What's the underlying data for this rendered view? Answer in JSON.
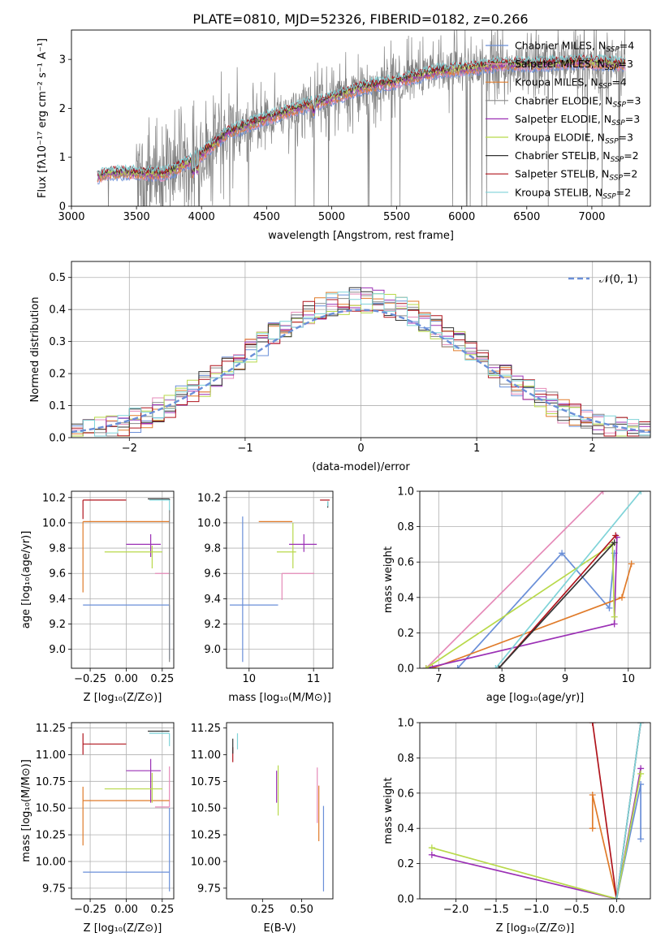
{
  "title": "PLATE=0810, MJD=52326, FIBERID=0182, z=0.266",
  "colors": {
    "chabrier_miles": "#6a8fd8",
    "salpeter_miles": "#e58ab8",
    "kroupa_miles": "#e07b2a",
    "chabrier_elodie": "#8a8a8a",
    "salpeter_elodie": "#9b30b5",
    "kroupa_elodie": "#b8d94a",
    "chabrier_stelib": "#333333",
    "salpeter_stelib": "#b0141c",
    "kroupa_stelib": "#7fd3d8",
    "grid": "#b0b0b0"
  },
  "legend_spectrum": [
    {
      "text": "Chabrier MILES, N",
      "sub": "SSP",
      "tail": "=4",
      "color": "#6a8fd8"
    },
    {
      "text": "Salpeter MILES, N",
      "sub": "SSP",
      "tail": "=3",
      "color": "#e58ab8"
    },
    {
      "text": "Kroupa MILES, N",
      "sub": "SSP",
      "tail": "=4",
      "color": "#e07b2a"
    },
    {
      "text": "Chabrier ELODIE, N",
      "sub": "SSP",
      "tail": "=3",
      "color": "#8a8a8a"
    },
    {
      "text": "Salpeter ELODIE, N",
      "sub": "SSP",
      "tail": "=3",
      "color": "#9b30b5"
    },
    {
      "text": "Kroupa ELODIE, N",
      "sub": "SSP",
      "tail": "=3",
      "color": "#b8d94a"
    },
    {
      "text": "Chabrier STELIB, N",
      "sub": "SSP",
      "tail": "=2",
      "color": "#333333"
    },
    {
      "text": "Salpeter STELIB, N",
      "sub": "SSP",
      "tail": "=2",
      "color": "#b0141c"
    },
    {
      "text": "Kroupa STELIB, N",
      "sub": "SSP",
      "tail": "=2",
      "color": "#7fd3d8"
    }
  ],
  "legend_hist": {
    "label": "𝒩(0, 1)",
    "color": "#6a8fd8"
  },
  "chart_data": [
    {
      "id": "spectrum",
      "type": "line",
      "xlabel": "wavelength [Angstrom, rest frame]",
      "ylabel": "Flux [fλ10⁻¹⁷ erg cm⁻² s⁻¹ A⁻¹]",
      "xlim": [
        3000,
        7450
      ],
      "ylim": [
        0,
        3.6
      ],
      "xticks": [
        3000,
        3500,
        4000,
        4500,
        5000,
        5500,
        6000,
        6500,
        7000
      ],
      "yticks": [
        0,
        1,
        2,
        3
      ],
      "legend_position": "top-right",
      "grid": false,
      "data_range": [
        3200,
        7260
      ],
      "model_trend": [
        [
          3200,
          0.6
        ],
        [
          3300,
          0.68
        ],
        [
          3500,
          0.68
        ],
        [
          3700,
          0.65
        ],
        [
          3800,
          0.75
        ],
        [
          4000,
          1.05
        ],
        [
          4200,
          1.5
        ],
        [
          4500,
          1.8
        ],
        [
          4800,
          2.05
        ],
        [
          5000,
          2.2
        ],
        [
          5200,
          2.4
        ],
        [
          5500,
          2.55
        ],
        [
          5800,
          2.75
        ],
        [
          6000,
          2.8
        ],
        [
          6300,
          2.9
        ],
        [
          6600,
          2.9
        ],
        [
          6900,
          2.95
        ],
        [
          7260,
          2.9
        ]
      ]
    },
    {
      "id": "residuals",
      "type": "histogram",
      "xlabel": "(data-model)/error",
      "ylabel": "Normed distribution",
      "xlim": [
        -2.5,
        2.5
      ],
      "ylim": [
        0,
        0.55
      ],
      "xticks": [
        -2,
        -1,
        0,
        1,
        2
      ],
      "yticks": [
        0.0,
        0.1,
        0.2,
        0.3,
        0.4,
        0.5
      ],
      "legend_position": "top-right",
      "grid": true,
      "bin_width": 0.1,
      "reference_curve": "normal(0,1)"
    },
    {
      "id": "age_vs_Z",
      "type": "errorbar",
      "xlabel": "Z [log₁₀(Z/Z⊙)]",
      "ylabel": "age  [log₁₀(age/yr)]",
      "xlim": [
        -0.38,
        0.33
      ],
      "ylim": [
        8.85,
        10.25
      ],
      "xticks": [
        -0.25,
        0.0,
        0.25
      ],
      "yticks": [
        9.0,
        9.2,
        9.4,
        9.6,
        9.8,
        10.0,
        10.2
      ],
      "grid": true,
      "series": [
        {
          "color": "#6a8fd8",
          "x": 0.3,
          "xerr": [
            0.6,
            0.0
          ],
          "y": 9.35,
          "yerr": [
            0.43,
            0.0
          ]
        },
        {
          "color": "#e58ab8",
          "x": 0.3,
          "xerr": [
            0.1,
            0.0
          ],
          "y": 9.6,
          "yerr": [
            0.0,
            0.0
          ]
        },
        {
          "color": "#e07b2a",
          "x": -0.3,
          "xerr": [
            0.0,
            0.6
          ],
          "y": 10.01,
          "yerr": [
            0.56,
            0.0
          ]
        },
        {
          "color": "#9b30b5",
          "x": 0.17,
          "xerr": [
            0.17,
            0.07
          ],
          "y": 9.83,
          "yerr": [
            0.1,
            0.08
          ]
        },
        {
          "color": "#b8d94a",
          "x": 0.18,
          "xerr": [
            0.33,
            0.07
          ],
          "y": 9.77,
          "yerr": [
            0.13,
            0.05
          ]
        },
        {
          "color": "#b0141c",
          "x": -0.3,
          "xerr": [
            0.0,
            0.3
          ],
          "y": 10.18,
          "yerr": [
            0.15,
            0.0
          ]
        },
        {
          "color": "#333333",
          "x": 0.3,
          "xerr": [
            0.15,
            0.0
          ],
          "y": 10.19,
          "yerr": [
            0.01,
            0.0
          ]
        },
        {
          "color": "#7fd3d8",
          "x": 0.3,
          "xerr": [
            0.14,
            0.0
          ],
          "y": 10.18,
          "yerr": [
            0.1,
            0.0
          ]
        },
        {
          "color": "#8a8a8a",
          "x": 0.3,
          "xerr": [
            0.0,
            0.0
          ],
          "y": 10.1,
          "yerr": [
            1.2,
            0.0
          ]
        }
      ]
    },
    {
      "id": "age_vs_mass",
      "type": "errorbar",
      "xlabel": "mass [log₁₀(M/M⊙)]",
      "ylabel": "",
      "xlim": [
        9.65,
        11.3
      ],
      "ylim": [
        8.85,
        10.25
      ],
      "xticks": [
        10,
        11
      ],
      "yticks": [
        9.0,
        9.2,
        9.4,
        9.6,
        9.8,
        10.0,
        10.2
      ],
      "grid": true,
      "series": [
        {
          "color": "#6a8fd8",
          "x": 9.9,
          "xerr": [
            0.2,
            0.55
          ],
          "y": 9.35,
          "yerr": [
            0.45,
            0.7
          ]
        },
        {
          "color": "#e58ab8",
          "x": 10.51,
          "xerr": [
            0.0,
            0.5
          ],
          "y": 9.6,
          "yerr": [
            0.21,
            0.0
          ]
        },
        {
          "color": "#e07b2a",
          "x": 10.57,
          "xerr": [
            0.42,
            0.1
          ],
          "y": 10.01,
          "yerr": [
            0.0,
            0.0
          ]
        },
        {
          "color": "#b8d94a",
          "x": 10.68,
          "xerr": [
            0.25,
            0.05
          ],
          "y": 9.77,
          "yerr": [
            0.13,
            0.23
          ]
        },
        {
          "color": "#9b30b5",
          "x": 10.85,
          "xerr": [
            0.23,
            0.2
          ],
          "y": 9.83,
          "yerr": [
            0.06,
            0.08
          ]
        },
        {
          "color": "#b0141c",
          "x": 11.1,
          "xerr": [
            0.0,
            0.15
          ],
          "y": 10.18,
          "yerr": [
            0.0,
            0.0
          ]
        },
        {
          "color": "#333333",
          "x": 11.22,
          "xerr": [
            0.0,
            0.0
          ],
          "y": 10.17,
          "yerr": [
            0.05,
            0.0
          ]
        },
        {
          "color": "#7fd3d8",
          "x": 11.22,
          "xerr": [
            0.0,
            0.0
          ],
          "y": 10.17,
          "yerr": [
            0.04,
            0.0
          ]
        }
      ]
    },
    {
      "id": "weight_vs_age",
      "type": "line",
      "xlabel": "age  [log₁₀(age/yr)]",
      "ylabel": "mass weight",
      "xlim": [
        6.7,
        10.35
      ],
      "ylim": [
        0,
        1.0
      ],
      "xticks": [
        7,
        8,
        9,
        10
      ],
      "yticks": [
        0.0,
        0.2,
        0.4,
        0.6,
        0.8,
        1.0
      ],
      "grid": true,
      "series": [
        {
          "color": "#6a8fd8",
          "x": [
            7.3,
            8.95,
            9.7,
            9.78
          ],
          "y": [
            0.0,
            0.65,
            0.34,
            0.65
          ]
        },
        {
          "color": "#e58ab8",
          "x": [
            6.8,
            9.6
          ],
          "y": [
            0.0,
            1.0
          ]
        },
        {
          "color": "#e07b2a",
          "x": [
            6.9,
            9.9,
            10.05
          ],
          "y": [
            0.0,
            0.4,
            0.59
          ]
        },
        {
          "color": "#9b30b5",
          "x": [
            6.8,
            9.78,
            9.82
          ],
          "y": [
            0.0,
            0.25,
            0.74
          ]
        },
        {
          "color": "#b8d94a",
          "x": [
            6.8,
            9.75,
            9.78
          ],
          "y": [
            0.0,
            0.7,
            0.29
          ]
        },
        {
          "color": "#b0141c",
          "x": [
            7.95,
            9.8
          ],
          "y": [
            0.0,
            0.75
          ]
        },
        {
          "color": "#333333",
          "x": [
            7.95,
            9.78
          ],
          "y": [
            0.0,
            0.71
          ]
        },
        {
          "color": "#7fd3d8",
          "x": [
            7.9,
            10.2
          ],
          "y": [
            0.0,
            1.0
          ]
        }
      ]
    },
    {
      "id": "mass_vs_Z",
      "type": "errorbar",
      "xlabel": "Z [log₁₀(Z/Z⊙)]",
      "ylabel": "mass [log₁₀(M/M⊙)]",
      "xlim": [
        -0.38,
        0.33
      ],
      "ylim": [
        9.65,
        11.3
      ],
      "xticks": [
        -0.25,
        0.0,
        0.25
      ],
      "yticks": [
        9.75,
        10.0,
        10.25,
        10.5,
        10.75,
        11.0,
        11.25
      ],
      "grid": true,
      "series": [
        {
          "color": "#6a8fd8",
          "x": 0.3,
          "xerr": [
            0.6,
            0.0
          ],
          "y": 9.9,
          "yerr": [
            0.18,
            0.6
          ]
        },
        {
          "color": "#e58ab8",
          "x": 0.3,
          "xerr": [
            0.1,
            0.0
          ],
          "y": 10.51,
          "yerr": [
            0.0,
            0.38
          ]
        },
        {
          "color": "#e07b2a",
          "x": -0.3,
          "xerr": [
            0.0,
            0.6
          ],
          "y": 10.57,
          "yerr": [
            0.42,
            0.13
          ]
        },
        {
          "color": "#9b30b5",
          "x": 0.17,
          "xerr": [
            0.17,
            0.07
          ],
          "y": 10.85,
          "yerr": [
            0.3,
            0.11
          ]
        },
        {
          "color": "#b8d94a",
          "x": 0.18,
          "xerr": [
            0.33,
            0.07
          ],
          "y": 10.68,
          "yerr": [
            0.13,
            0.15
          ]
        },
        {
          "color": "#b0141c",
          "x": -0.3,
          "xerr": [
            0.0,
            0.3
          ],
          "y": 11.1,
          "yerr": [
            0.1,
            0.1
          ]
        },
        {
          "color": "#333333",
          "x": 0.3,
          "xerr": [
            0.15,
            0.0
          ],
          "y": 11.22,
          "yerr": [
            0.0,
            0.0
          ]
        },
        {
          "color": "#7fd3d8",
          "x": 0.3,
          "xerr": [
            0.14,
            0.0
          ],
          "y": 11.2,
          "yerr": [
            0.12,
            0.0
          ]
        }
      ]
    },
    {
      "id": "mass_vs_ebv",
      "type": "errorbar",
      "xlabel": "E(B-V)",
      "ylabel": "",
      "xlim": [
        0.02,
        0.7
      ],
      "ylim": [
        9.65,
        11.3
      ],
      "xticks": [
        0.25,
        0.5
      ],
      "yticks": [
        9.75,
        10.0,
        10.25,
        10.5,
        10.75,
        11.0,
        11.25
      ],
      "grid": false,
      "series": [
        {
          "color": "#6a8fd8",
          "x": 0.64,
          "y": 10.12,
          "yerr": [
            0.4,
            0.4
          ]
        },
        {
          "color": "#e58ab8",
          "x": 0.6,
          "y": 10.62,
          "yerr": [
            0.26,
            0.26
          ]
        },
        {
          "color": "#e07b2a",
          "x": 0.61,
          "y": 10.45,
          "yerr": [
            0.26,
            0.26
          ]
        },
        {
          "color": "#9b30b5",
          "x": 0.34,
          "y": 10.85,
          "yerr": [
            0.3,
            0.0
          ]
        },
        {
          "color": "#b8d94a",
          "x": 0.35,
          "y": 10.68,
          "yerr": [
            0.25,
            0.22
          ]
        },
        {
          "color": "#b0141c",
          "x": 0.06,
          "y": 11.0,
          "yerr": [
            0.07,
            0.07
          ]
        },
        {
          "color": "#333333",
          "x": 0.06,
          "y": 11.08,
          "yerr": [
            0.07,
            0.07
          ]
        },
        {
          "color": "#7fd3d8",
          "x": 0.09,
          "y": 11.15,
          "yerr": [
            0.1,
            0.05
          ]
        }
      ]
    },
    {
      "id": "weight_vs_Z",
      "type": "line",
      "xlabel": "Z [log₁₀(Z/Z⊙)]",
      "ylabel": "mass weight",
      "xlim": [
        -2.45,
        0.42
      ],
      "ylim": [
        0,
        1.0
      ],
      "xticks": [
        -2.0,
        -1.5,
        -1.0,
        -0.5,
        0.0
      ],
      "yticks": [
        0.0,
        0.2,
        0.4,
        0.6,
        0.8,
        1.0
      ],
      "grid": true,
      "series": [
        {
          "color": "#6a8fd8",
          "x": [
            0.0,
            0.3,
            0.3
          ],
          "y": [
            0.0,
            0.65,
            0.34
          ]
        },
        {
          "color": "#e58ab8",
          "x": [
            0.0,
            0.3
          ],
          "y": [
            0.0,
            1.0
          ]
        },
        {
          "color": "#e07b2a",
          "x": [
            -0.3,
            -0.3,
            0.0
          ],
          "y": [
            0.4,
            0.59,
            0.0
          ]
        },
        {
          "color": "#9b30b5",
          "x": [
            -2.3,
            0.0,
            0.3
          ],
          "y": [
            0.25,
            0.0,
            0.74
          ]
        },
        {
          "color": "#b8d94a",
          "x": [
            -2.3,
            0.0,
            0.3
          ],
          "y": [
            0.29,
            0.0,
            0.71
          ]
        },
        {
          "color": "#b0141c",
          "x": [
            -0.3,
            0.0
          ],
          "y": [
            1.0,
            0.0
          ]
        },
        {
          "color": "#333333",
          "x": [
            0.0,
            0.3
          ],
          "y": [
            0.0,
            1.0
          ]
        },
        {
          "color": "#7fd3d8",
          "x": [
            0.0,
            0.3
          ],
          "y": [
            0.0,
            1.0
          ]
        }
      ]
    }
  ]
}
